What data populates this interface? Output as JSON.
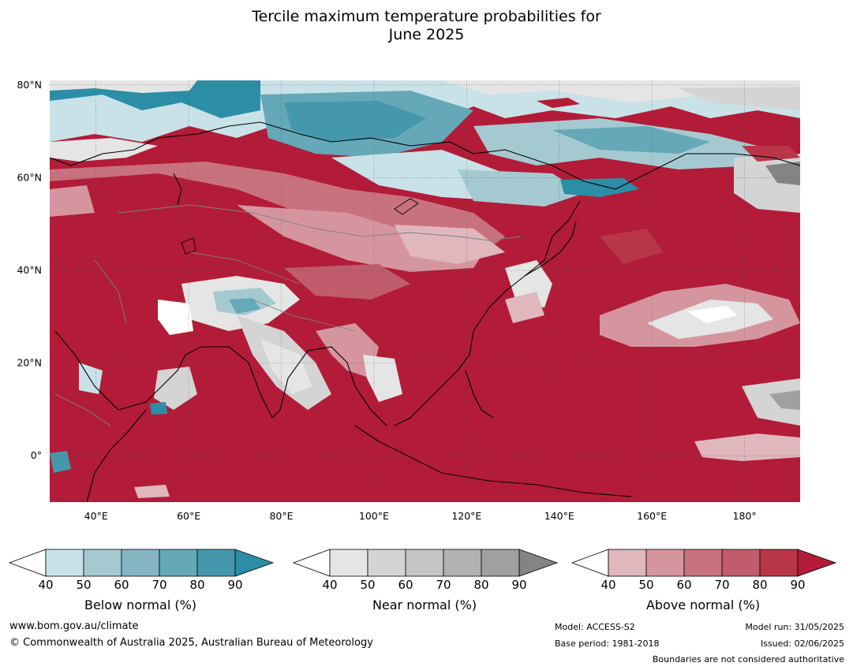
{
  "title": {
    "line1": "Tercile maximum temperature probabilities for",
    "line2": "June 2025"
  },
  "map": {
    "lat_labels": [
      "80°N",
      "60°N",
      "40°N",
      "20°N",
      "0°"
    ],
    "lat_values": [
      80,
      60,
      40,
      20,
      0
    ],
    "lon_labels": [
      "40°E",
      "60°E",
      "80°E",
      "100°E",
      "120°E",
      "140°E",
      "160°E",
      "180°"
    ],
    "lon_values": [
      40,
      60,
      80,
      100,
      120,
      140,
      160,
      180
    ],
    "lon_range": [
      30,
      192
    ],
    "lat_range": [
      -10,
      81
    ]
  },
  "colorbars": [
    {
      "label": "Below normal (%)",
      "ticks": [
        "40",
        "50",
        "60",
        "70",
        "80",
        "90"
      ],
      "colors": [
        "#c8e2e8",
        "#a5c9d1",
        "#86b6c3",
        "#65a8b8",
        "#4598ac",
        "#2b8ea6"
      ]
    },
    {
      "label": "Near normal (%)",
      "ticks": [
        "40",
        "50",
        "60",
        "70",
        "80",
        "90"
      ],
      "colors": [
        "#e5e5e5",
        "#d4d4d4",
        "#c4c4c4",
        "#b2b2b2",
        "#a0a0a0",
        "#848484"
      ]
    },
    {
      "label": "Above normal (%)",
      "ticks": [
        "40",
        "50",
        "60",
        "70",
        "80",
        "90"
      ],
      "colors": [
        "#e0b7bd",
        "#d5959f",
        "#c9727f",
        "#c05c6b",
        "#b83648",
        "#b21c38"
      ]
    }
  ],
  "footer": {
    "website": "www.bom.gov.au/climate",
    "copyright": "© Commonwealth of Australia 2025, Australian Bureau of Meteorology",
    "model": "Model: ACCESS-S2",
    "base_period": "Base period: 1981-2018",
    "model_run": "Model run: 31/05/2025",
    "issued": "Issued: 02/06/2025",
    "disclaimer": "Boundaries are not considered authoritative"
  },
  "colors": {
    "above_dark": "#b21c38",
    "below_dark": "#2b8ea6",
    "near_light": "#e5e5e5"
  }
}
